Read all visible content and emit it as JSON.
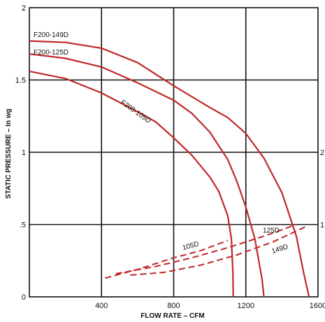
{
  "chart_data": {
    "type": "line",
    "title": "",
    "xlabel": "FLOW RATE – CFM",
    "ylabel": "STATIC PRESSURE – In wg",
    "xlim": [
      0,
      1600
    ],
    "ylim": [
      0,
      2
    ],
    "x_ticks": [
      "400",
      "800",
      "1200",
      "1600"
    ],
    "y_ticks_left": [
      "0",
      ".5",
      "1",
      "1.5",
      "2"
    ],
    "y_ticks_right": [
      "1",
      "2"
    ],
    "y_ticks_right_values": [
      0.5,
      1.0
    ],
    "grid": true,
    "fan_curves": [
      {
        "name": "F200-149D",
        "color": "#c0282a",
        "points": [
          [
            0,
            1.77
          ],
          [
            200,
            1.76
          ],
          [
            400,
            1.72
          ],
          [
            600,
            1.62
          ],
          [
            800,
            1.46
          ],
          [
            1000,
            1.31
          ],
          [
            1100,
            1.24
          ],
          [
            1200,
            1.13
          ],
          [
            1300,
            0.96
          ],
          [
            1400,
            0.72
          ],
          [
            1480,
            0.42
          ],
          [
            1520,
            0.17
          ],
          [
            1550,
            0.0
          ]
        ]
      },
      {
        "name": "F200-125D",
        "color": "#c0282a",
        "points": [
          [
            0,
            1.68
          ],
          [
            200,
            1.65
          ],
          [
            400,
            1.59
          ],
          [
            600,
            1.48
          ],
          [
            800,
            1.36
          ],
          [
            900,
            1.27
          ],
          [
            1000,
            1.14
          ],
          [
            1100,
            0.95
          ],
          [
            1150,
            0.8
          ],
          [
            1200,
            0.62
          ],
          [
            1250,
            0.4
          ],
          [
            1290,
            0.12
          ],
          [
            1300,
            0.0
          ]
        ]
      },
      {
        "name": "F200-105D",
        "color": "#c0282a",
        "points": [
          [
            0,
            1.56
          ],
          [
            200,
            1.51
          ],
          [
            400,
            1.41
          ],
          [
            600,
            1.28
          ],
          [
            700,
            1.21
          ],
          [
            800,
            1.1
          ],
          [
            900,
            0.98
          ],
          [
            1000,
            0.83
          ],
          [
            1050,
            0.73
          ],
          [
            1100,
            0.56
          ],
          [
            1120,
            0.4
          ],
          [
            1128,
            0.17
          ],
          [
            1130,
            0.0
          ]
        ]
      }
    ],
    "system_curves": [
      {
        "name": "105D",
        "color": "#c0282a",
        "style": "dashed",
        "points": [
          [
            420,
            0.13
          ],
          [
            600,
            0.19
          ],
          [
            800,
            0.27
          ],
          [
            950,
            0.32
          ],
          [
            1100,
            0.39
          ]
        ]
      },
      {
        "name": "125D",
        "color": "#c0282a",
        "style": "dashed",
        "points": [
          [
            480,
            0.16
          ],
          [
            700,
            0.21
          ],
          [
            900,
            0.27
          ],
          [
            1100,
            0.34
          ],
          [
            1300,
            0.42
          ],
          [
            1480,
            0.5
          ]
        ]
      },
      {
        "name": "149D",
        "color": "#c0282a",
        "style": "dashed",
        "points": [
          [
            560,
            0.15
          ],
          [
            750,
            0.17
          ],
          [
            950,
            0.22
          ],
          [
            1150,
            0.29
          ],
          [
            1350,
            0.38
          ],
          [
            1540,
            0.49
          ]
        ]
      }
    ]
  }
}
